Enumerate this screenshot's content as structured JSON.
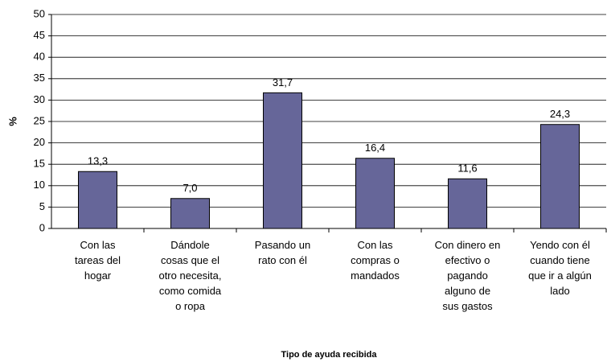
{
  "chart_data": {
    "type": "bar",
    "categories": [
      "Con las\ntareas del\nhogar",
      "Dándole\ncosas que el\notro necesita,\ncomo comida\no ropa",
      "Pasando un\nrato con él",
      "Con las\ncompras o\nmandados",
      "Con dinero en\nefectivo o\npagando\nalguno de\nsus gastos",
      "Yendo con él\ncuando tiene\nque ir a algún\nlado"
    ],
    "values": [
      13.3,
      7.0,
      31.7,
      16.4,
      11.6,
      24.3
    ],
    "value_labels": [
      "13,3",
      "7,0",
      "31,7",
      "16,4",
      "11,6",
      "24,3"
    ],
    "color": "#666699",
    "xlabel": "Tipo de ayuda recibida",
    "ylabel": "%",
    "ylim": [
      0,
      50
    ],
    "yticks": [
      0,
      5,
      10,
      15,
      20,
      25,
      30,
      35,
      40,
      45,
      50
    ],
    "grid": true
  }
}
